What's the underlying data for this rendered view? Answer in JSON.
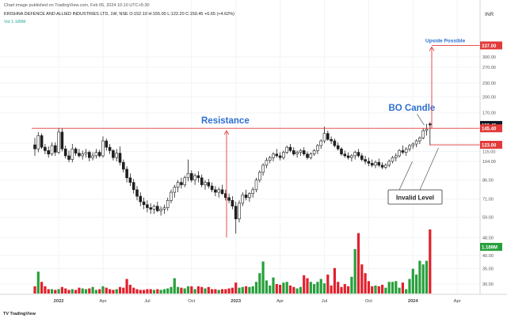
{
  "header": {
    "published_note": "Chart image published on TradingView.com, Feb 05, 2024 10:10 UTC+5:30",
    "symbol_line": "KRISHNA DEFENCE AND ALLIED INDUSTRIES LTD, 1W, NSE  O:152.10  H:155.00  L:122.20  C:150.45  +6.65 (+4.62%)",
    "volume_line": "Vol  1.189M",
    "currency": "INR",
    "watermark": "TV TradingView"
  },
  "colors": {
    "up": "#26a69a",
    "down": "#ef5350",
    "vol_up": "#27a03c",
    "vol_down": "#e2202d",
    "annotation_red": "#e23a3a",
    "annotation_blue": "#2e6fd1",
    "candle": "#1f1f1f"
  },
  "annotations": {
    "resistance": "Resistance",
    "bo_candle": "BO Candle",
    "upside": "Upside Possible",
    "invalid": "Invalid Level"
  },
  "chart_data": {
    "type": "candlestick",
    "title": "KRISHNA DEFENCE AND ALLIED INDUSTRIES LTD, 1W, NSE",
    "timeframe": "1W",
    "y_scale": "log",
    "ylim": [
      27,
      420
    ],
    "y_ticks": [
      30.0,
      35.0,
      40.0,
      48.0,
      59.0,
      71.0,
      86.0,
      104.0,
      115.0,
      125.0,
      170.0,
      200.0,
      230.0,
      270.0,
      300.0
    ],
    "x_tick_labels": [
      "2022",
      "Apr",
      "Jul",
      "Oct",
      "2023",
      "Apr",
      "Jul",
      "Oct",
      "2024",
      "Apr"
    ],
    "x_tick_weeks": [
      7,
      20,
      33,
      46,
      59,
      72,
      85,
      98,
      111,
      124
    ],
    "last_week": 115,
    "price_labels": [
      {
        "value": 150.45,
        "text": "150.45",
        "style": "dark"
      },
      {
        "value": 145.4,
        "text": "145.40",
        "style": "red"
      },
      {
        "value": 123.0,
        "text": "123.00",
        "style": "red"
      },
      {
        "value": 337.0,
        "text": "337.00",
        "style": "red"
      }
    ],
    "volume_label": "1.189M",
    "levels": {
      "resistance": 145.4,
      "invalid": 123.0,
      "target": 337.0
    },
    "candles_ohlc": [
      [
        123,
        132,
        110,
        118
      ],
      [
        118,
        140,
        114,
        135
      ],
      [
        135,
        138,
        118,
        120
      ],
      [
        120,
        124,
        112,
        116
      ],
      [
        116,
        121,
        108,
        112
      ],
      [
        112,
        126,
        110,
        122
      ],
      [
        122,
        126,
        110,
        114
      ],
      [
        114,
        146,
        112,
        140
      ],
      [
        140,
        145,
        115,
        118
      ],
      [
        118,
        122,
        107,
        110
      ],
      [
        110,
        116,
        103,
        106
      ],
      [
        106,
        124,
        103,
        118
      ],
      [
        118,
        120,
        110,
        113
      ],
      [
        113,
        118,
        108,
        110
      ],
      [
        110,
        116,
        106,
        112
      ],
      [
        112,
        118,
        108,
        114
      ],
      [
        114,
        116,
        104,
        108
      ],
      [
        108,
        114,
        105,
        110
      ],
      [
        110,
        118,
        107,
        114
      ],
      [
        114,
        117,
        108,
        110
      ],
      [
        110,
        134,
        108,
        128
      ],
      [
        128,
        131,
        116,
        120
      ],
      [
        120,
        124,
        112,
        116
      ],
      [
        116,
        118,
        105,
        108
      ],
      [
        108,
        118,
        104,
        113
      ],
      [
        113,
        121,
        100,
        103
      ],
      [
        103,
        106,
        93,
        96
      ],
      [
        96,
        99,
        84,
        88
      ],
      [
        88,
        92,
        81,
        84
      ],
      [
        84,
        87,
        75,
        78
      ],
      [
        78,
        81,
        70,
        73
      ],
      [
        73,
        76,
        66,
        69
      ],
      [
        69,
        72,
        64,
        67
      ],
      [
        67,
        70,
        62,
        65
      ],
      [
        65,
        68,
        61,
        64
      ],
      [
        64,
        67,
        61,
        66
      ],
      [
        66,
        69,
        62,
        63
      ],
      [
        63,
        66,
        60,
        64
      ],
      [
        64,
        67,
        61,
        65
      ],
      [
        65,
        72,
        63,
        70
      ],
      [
        70,
        78,
        68,
        76
      ],
      [
        76,
        82,
        72,
        80
      ],
      [
        80,
        86,
        76,
        84
      ],
      [
        84,
        88,
        79,
        82
      ],
      [
        82,
        90,
        80,
        88
      ],
      [
        88,
        106,
        85,
        92
      ],
      [
        92,
        95,
        84,
        86
      ],
      [
        86,
        92,
        82,
        90
      ],
      [
        90,
        94,
        84,
        88
      ],
      [
        88,
        91,
        80,
        82
      ],
      [
        82,
        86,
        78,
        84
      ],
      [
        84,
        87,
        79,
        81
      ],
      [
        81,
        84,
        76,
        78
      ],
      [
        78,
        81,
        73,
        76
      ],
      [
        76,
        80,
        72,
        78
      ],
      [
        78,
        82,
        74,
        75
      ],
      [
        75,
        78,
        70,
        72
      ],
      [
        72,
        75,
        68,
        70
      ],
      [
        70,
        73,
        64,
        66
      ],
      [
        66,
        69,
        50,
        58
      ],
      [
        58,
        70,
        56,
        68
      ],
      [
        68,
        76,
        66,
        74
      ],
      [
        74,
        78,
        70,
        72
      ],
      [
        72,
        76,
        69,
        75
      ],
      [
        75,
        80,
        72,
        78
      ],
      [
        78,
        88,
        76,
        86
      ],
      [
        86,
        95,
        84,
        93
      ],
      [
        93,
        102,
        90,
        100
      ],
      [
        100,
        108,
        97,
        105
      ],
      [
        105,
        110,
        102,
        108
      ],
      [
        108,
        114,
        104,
        112
      ],
      [
        112,
        118,
        108,
        110
      ],
      [
        110,
        114,
        105,
        108
      ],
      [
        108,
        116,
        106,
        114
      ],
      [
        114,
        122,
        112,
        120
      ],
      [
        120,
        124,
        114,
        116
      ],
      [
        116,
        120,
        110,
        112
      ],
      [
        112,
        116,
        108,
        114
      ],
      [
        114,
        118,
        110,
        116
      ],
      [
        116,
        120,
        110,
        112
      ],
      [
        112,
        115,
        106,
        108
      ],
      [
        108,
        114,
        106,
        112
      ],
      [
        112,
        118,
        110,
        116
      ],
      [
        116,
        124,
        112,
        122
      ],
      [
        122,
        130,
        118,
        128
      ],
      [
        128,
        148,
        125,
        138
      ],
      [
        138,
        142,
        128,
        130
      ],
      [
        130,
        134,
        124,
        128
      ],
      [
        128,
        131,
        120,
        122
      ],
      [
        122,
        126,
        116,
        118
      ],
      [
        118,
        120,
        110,
        112
      ],
      [
        112,
        116,
        108,
        110
      ],
      [
        110,
        114,
        106,
        108
      ],
      [
        108,
        112,
        104,
        110
      ],
      [
        110,
        116,
        106,
        114
      ],
      [
        114,
        118,
        108,
        110
      ],
      [
        110,
        113,
        104,
        106
      ],
      [
        106,
        110,
        101,
        104
      ],
      [
        104,
        108,
        99,
        102
      ],
      [
        102,
        106,
        98,
        100
      ],
      [
        100,
        105,
        97,
        103
      ],
      [
        103,
        107,
        98,
        100
      ],
      [
        100,
        103,
        96,
        98
      ],
      [
        98,
        102,
        96,
        100
      ],
      [
        100,
        106,
        98,
        104
      ],
      [
        104,
        110,
        102,
        108
      ],
      [
        108,
        113,
        104,
        110
      ],
      [
        110,
        118,
        108,
        116
      ],
      [
        116,
        122,
        112,
        114
      ],
      [
        114,
        120,
        110,
        118
      ],
      [
        118,
        124,
        115,
        122
      ],
      [
        122,
        126,
        118,
        124
      ],
      [
        124,
        130,
        120,
        128
      ],
      [
        128,
        134,
        124,
        132
      ],
      [
        132,
        145,
        130,
        142
      ],
      [
        142,
        152,
        135,
        144
      ],
      [
        152.1,
        155.0,
        122.2,
        150.45
      ]
    ],
    "volume_ratio": [
      0.1,
      0.3,
      0.16,
      0.1,
      0.06,
      0.06,
      0.05,
      0.06,
      0.09,
      0.07,
      0.05,
      0.06,
      0.05,
      0.08,
      0.07,
      0.06,
      0.07,
      0.09,
      0.05,
      0.06,
      0.1,
      0.08,
      0.06,
      0.05,
      0.06,
      0.09,
      0.08,
      0.2,
      0.12,
      0.08,
      0.06,
      0.05,
      0.05,
      0.06,
      0.06,
      0.05,
      0.06,
      0.05,
      0.06,
      0.07,
      0.09,
      0.21,
      0.09,
      0.08,
      0.07,
      0.1,
      0.1,
      0.06,
      0.1,
      0.09,
      0.07,
      0.09,
      0.06,
      0.06,
      0.05,
      0.06,
      0.06,
      0.07,
      0.08,
      0.15,
      0.08,
      0.09,
      0.1,
      0.09,
      0.1,
      0.16,
      0.28,
      0.44,
      0.18,
      0.11,
      0.22,
      0.13,
      0.12,
      0.15,
      0.16,
      0.11,
      0.09,
      0.07,
      0.09,
      0.25,
      0.21,
      0.16,
      0.13,
      0.16,
      0.2,
      0.14,
      0.26,
      0.11,
      0.35,
      0.16,
      0.09,
      0.13,
      0.1,
      0.23,
      0.61,
      0.83,
      0.4,
      0.28,
      0.17,
      0.1,
      0.11,
      0.1,
      0.12,
      0.08,
      0.16,
      0.16,
      0.17,
      0.08,
      0.15,
      0.06,
      0.2,
      0.34,
      0.26,
      0.45,
      0.4,
      0.45,
      0.88,
      0.82,
      0.95,
      0.64
    ]
  }
}
